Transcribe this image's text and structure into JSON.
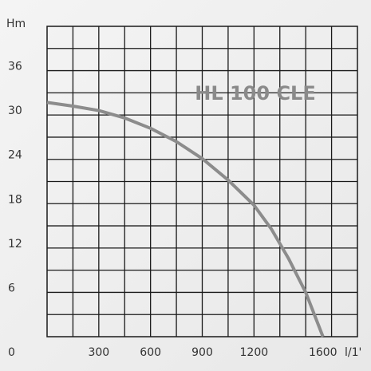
{
  "chart_data": {
    "type": "line",
    "title": "HL 100 CLE",
    "ylabel": "Hm",
    "xlabel": "l/1'",
    "origin_label": "0",
    "x": [
      0,
      150,
      300,
      450,
      600,
      750,
      900,
      1050,
      1200,
      1300,
      1400,
      1500,
      1600
    ],
    "series": [
      {
        "name": "HL 100 CLE",
        "color": "#8c8c8c",
        "values": [
          31.7,
          31.2,
          30.6,
          29.6,
          28.2,
          26.4,
          24.1,
          21.2,
          17.8,
          14.6,
          10.6,
          6,
          0
        ]
      }
    ],
    "xlim": [
      0,
      1800
    ],
    "xticks": [
      300,
      600,
      900,
      1200,
      1600
    ],
    "ylim": [
      0,
      42
    ],
    "yticks": [
      6,
      12,
      18,
      24,
      30,
      36
    ],
    "xgrid": [
      150,
      300,
      450,
      600,
      750,
      900,
      1050,
      1200,
      1350,
      1500,
      1650
    ],
    "ygrid": [
      3,
      6,
      9,
      12,
      15,
      18,
      21,
      24,
      27,
      30,
      33,
      36,
      39
    ],
    "grid": true
  }
}
